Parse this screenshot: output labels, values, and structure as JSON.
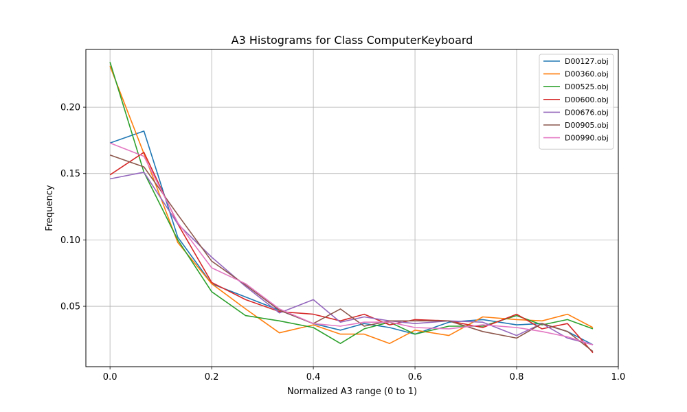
{
  "chart_data": {
    "type": "line",
    "title": "A3 Histograms for Class ComputerKeyboard",
    "xlabel": "Normalized A3 range (0 to 1)",
    "ylabel": "Frequency",
    "xlim": [
      -0.0475,
      1.0
    ],
    "ylim": [
      0.0045,
      0.2435
    ],
    "xticks": [
      0.0,
      0.2,
      0.4,
      0.6,
      0.8,
      1.0
    ],
    "xtick_labels": [
      "0.0",
      "0.2",
      "0.4",
      "0.6",
      "0.8",
      "1.0"
    ],
    "yticks": [
      0.05,
      0.1,
      0.15,
      0.2
    ],
    "ytick_labels": [
      "0.05",
      "0.10",
      "0.15",
      "0.20"
    ],
    "grid": true,
    "legend_position": "top-right",
    "x": [
      0.0,
      0.0667,
      0.1333,
      0.2,
      0.2667,
      0.3333,
      0.4,
      0.4533,
      0.5,
      0.55,
      0.6,
      0.6667,
      0.7333,
      0.8,
      0.85,
      0.9,
      0.95
    ],
    "series": [
      {
        "name": "D00127.obj",
        "color": "#1f77b4",
        "values": [
          0.173,
          0.182,
          0.102,
          0.067,
          0.057,
          0.047,
          0.037,
          0.032,
          0.037,
          0.034,
          0.029,
          0.038,
          0.04,
          0.036,
          0.037,
          0.031,
          0.021
        ]
      },
      {
        "name": "D00360.obj",
        "color": "#ff7f0e",
        "values": [
          0.231,
          0.165,
          0.098,
          0.067,
          0.048,
          0.03,
          0.036,
          0.029,
          0.029,
          0.022,
          0.032,
          0.028,
          0.042,
          0.04,
          0.039,
          0.044,
          0.034
        ]
      },
      {
        "name": "D00525.obj",
        "color": "#2ca02c",
        "values": [
          0.234,
          0.151,
          0.1,
          0.061,
          0.043,
          0.039,
          0.034,
          0.022,
          0.033,
          0.038,
          0.029,
          0.035,
          0.035,
          0.043,
          0.036,
          0.04,
          0.033
        ]
      },
      {
        "name": "D00600.obj",
        "color": "#d62728",
        "values": [
          0.149,
          0.166,
          0.112,
          0.068,
          0.055,
          0.046,
          0.044,
          0.039,
          0.044,
          0.036,
          0.04,
          0.039,
          0.034,
          0.044,
          0.033,
          0.037,
          0.015
        ]
      },
      {
        "name": "D00676.obj",
        "color": "#9467bd",
        "values": [
          0.146,
          0.151,
          0.112,
          0.087,
          0.065,
          0.045,
          0.055,
          0.038,
          0.042,
          0.039,
          0.037,
          0.039,
          0.038,
          0.028,
          0.037,
          0.026,
          0.021
        ]
      },
      {
        "name": "D00905.obj",
        "color": "#8c564b",
        "values": [
          0.164,
          0.155,
          0.119,
          0.084,
          0.066,
          0.047,
          0.037,
          0.048,
          0.035,
          0.039,
          0.039,
          0.039,
          0.031,
          0.026,
          0.037,
          0.031,
          0.016
        ]
      },
      {
        "name": "D00990.obj",
        "color": "#e377c2",
        "values": [
          0.173,
          0.163,
          0.113,
          0.079,
          0.067,
          0.048,
          0.037,
          0.035,
          0.038,
          0.038,
          0.034,
          0.033,
          0.036,
          0.034,
          0.031,
          0.027,
          0.021
        ]
      }
    ]
  }
}
